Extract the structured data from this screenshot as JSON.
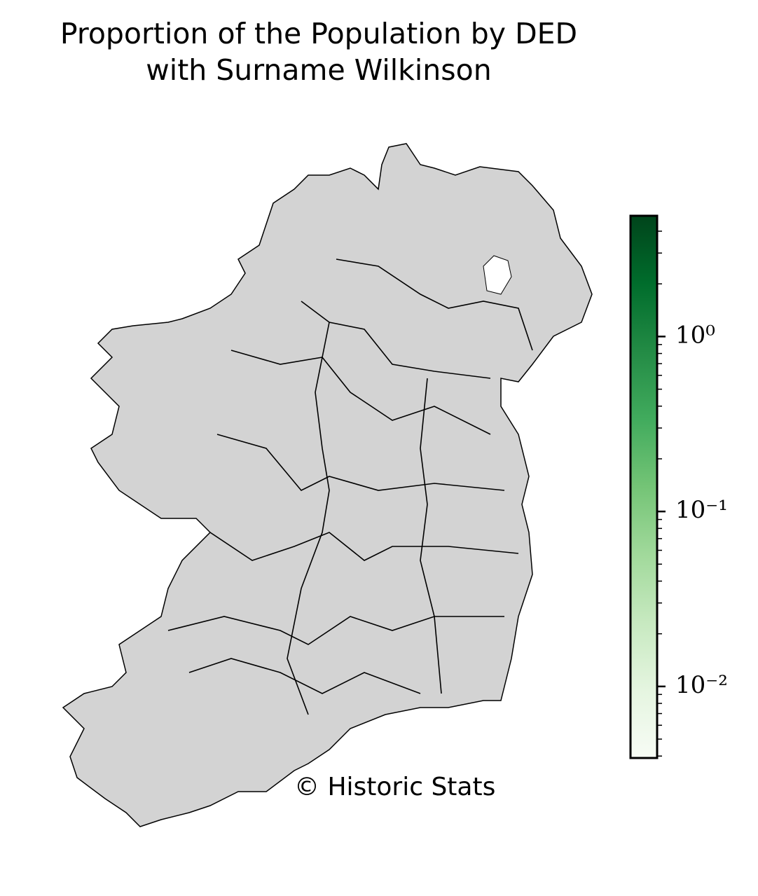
{
  "chart_data": {
    "type": "choropleth",
    "title_lines": [
      "Proportion of the Population by DED",
      "with Surname Wilkinson"
    ],
    "credit": "© Historic Stats",
    "region_color": "#d3d3d3",
    "colorbar": {
      "log": true,
      "lim": [
        0.0039,
        4.9
      ],
      "ticks": [
        {
          "value": 1,
          "label": "10⁰"
        },
        {
          "value": 0.1,
          "label": "10⁻¹"
        },
        {
          "value": 0.01,
          "label": "10⁻²"
        }
      ],
      "minor_ticks": [
        0.004,
        0.005,
        0.006,
        0.007,
        0.008,
        0.009,
        0.02,
        0.03,
        0.04,
        0.05,
        0.06,
        0.07,
        0.08,
        0.09,
        0.2,
        0.3,
        0.4,
        0.5,
        0.6,
        0.7,
        0.8,
        0.9,
        2,
        3,
        4
      ],
      "colors": [
        "#f7fcf5",
        "#e5f5e0",
        "#c7e9c0",
        "#a1d99b",
        "#74c476",
        "#41ab5d",
        "#238b45",
        "#006d2c",
        "#00441b"
      ]
    }
  }
}
